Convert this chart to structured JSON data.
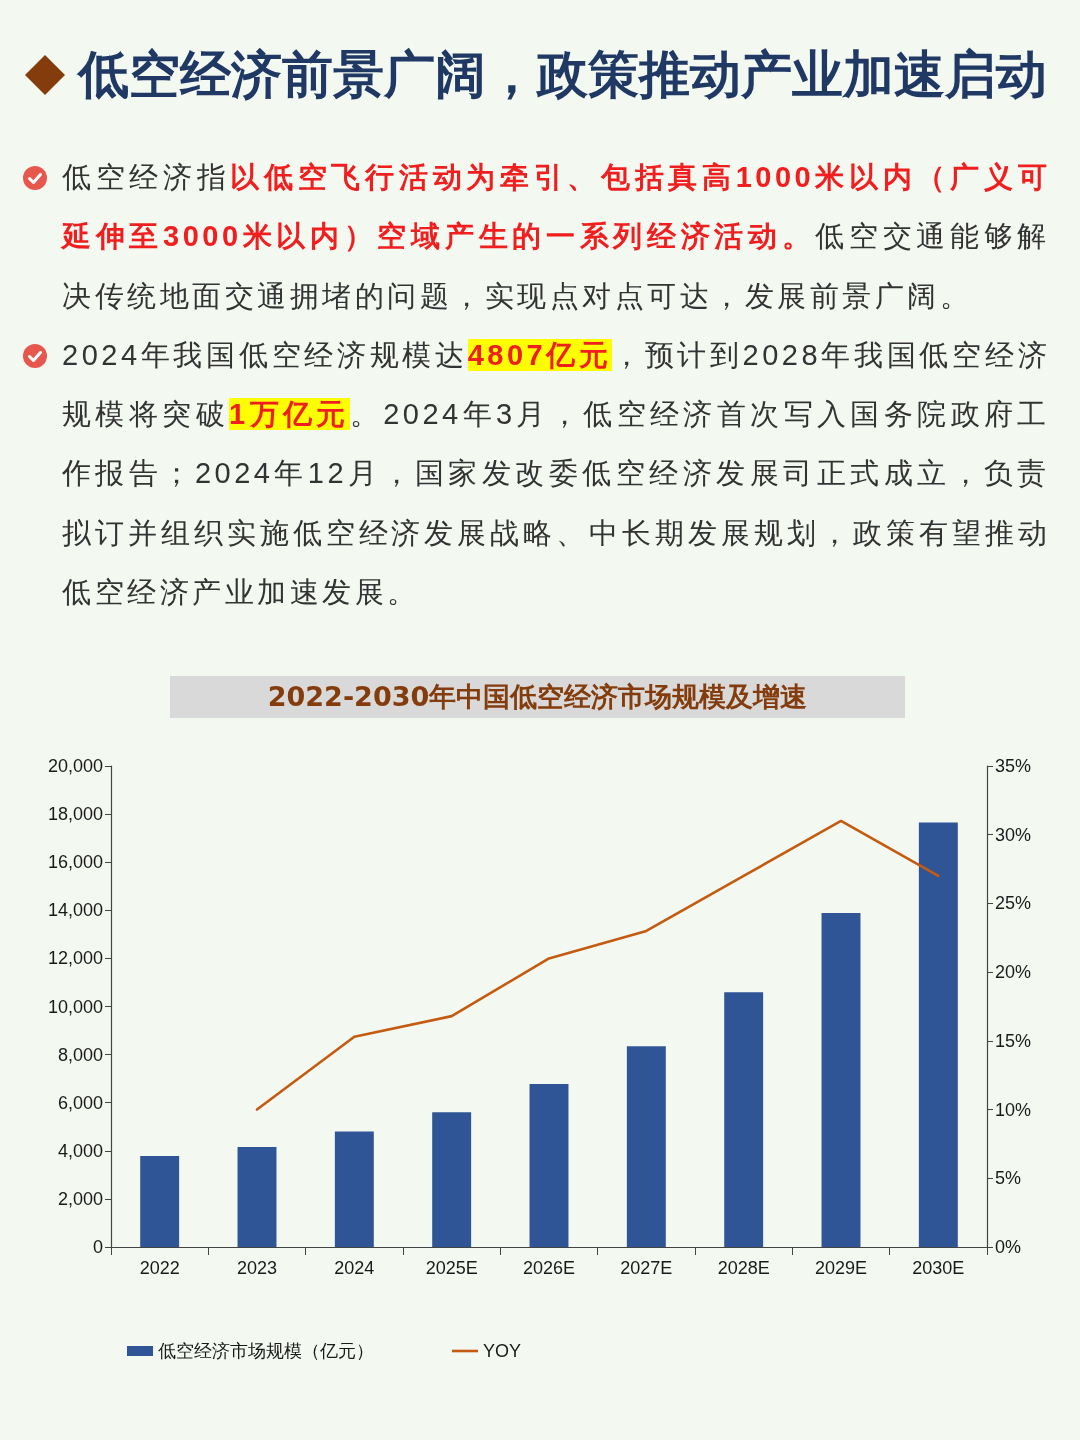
{
  "chart_data": {
    "type": "bar",
    "title": "低空经济前景广阔，政策推动产业加速启动",
    "subtitle": "2022-2030年中国低空经济市场规模及增速",
    "annotations": [
      "低空经济指以低空飞行活动为牵引、包括真高1000米以内（广义可延伸至3000米以内）空域产生的一系列经济活动。低空交通能够解决传统地面交通拥堵的问题，实现点对点可达，发展前景广阔。",
      "2024年我国低空经济规模达4807亿元，预计到2028年我国低空经济规模将突破1万亿元。2024年3月，低空经济首次写入国务院政府工作报告；2024年12月，国家发改委低空经济发展司正式成立，负责拟订并组织实施低空经济发展战略、中长期发展规划，政策有望推动低空经济产业加速发展。"
    ],
    "categories": [
      "2022",
      "2023",
      "2024",
      "2025E",
      "2026E",
      "2027E",
      "2028E",
      "2029E",
      "2030E"
    ],
    "series": [
      {
        "name": "低空经济市场规模（亿元）",
        "color": "#2f5597",
        "values": [
          3780,
          4160,
          4800,
          5600,
          6780,
          8350,
          10590,
          13890,
          17650
        ]
      },
      {
        "name": "YOY",
        "type": "line",
        "axis": "y2",
        "color": "#c55a11",
        "values": [
          null,
          10.0,
          15.3,
          16.8,
          21.0,
          23.0,
          27.0,
          31.0,
          27.0
        ]
      }
    ],
    "ylim": [
      0,
      20000
    ],
    "yticks": [
      0,
      {
        "value": 2000,
        "label": "2,000"
      },
      {
        "value": 4000,
        "label": "4,000"
      },
      {
        "value": 6000,
        "label": "6,000"
      },
      {
        "value": 8000,
        "label": "8,000"
      },
      {
        "value": 10000,
        "label": "10,000"
      },
      {
        "value": 12000,
        "label": "12,000"
      },
      {
        "value": 14000,
        "label": "14,000"
      },
      {
        "value": 16000,
        "label": "16,000"
      },
      {
        "value": 18000,
        "label": "18,000"
      },
      {
        "value": 20000,
        "label": "20,000"
      }
    ],
    "y2lim": [
      0,
      35
    ],
    "y2ticks": [
      {
        "value": 0,
        "label": "0%"
      },
      {
        "value": 5,
        "label": "5%"
      },
      {
        "value": 10,
        "label": "10%"
      },
      {
        "value": 15,
        "label": "15%"
      },
      {
        "value": 20,
        "label": "20%"
      },
      {
        "value": 25,
        "label": "25%"
      },
      {
        "value": 30,
        "label": "30%"
      },
      {
        "value": 35,
        "label": "35%"
      }
    ],
    "legend": "bottom",
    "marker": "none",
    "grid": false
  }
}
